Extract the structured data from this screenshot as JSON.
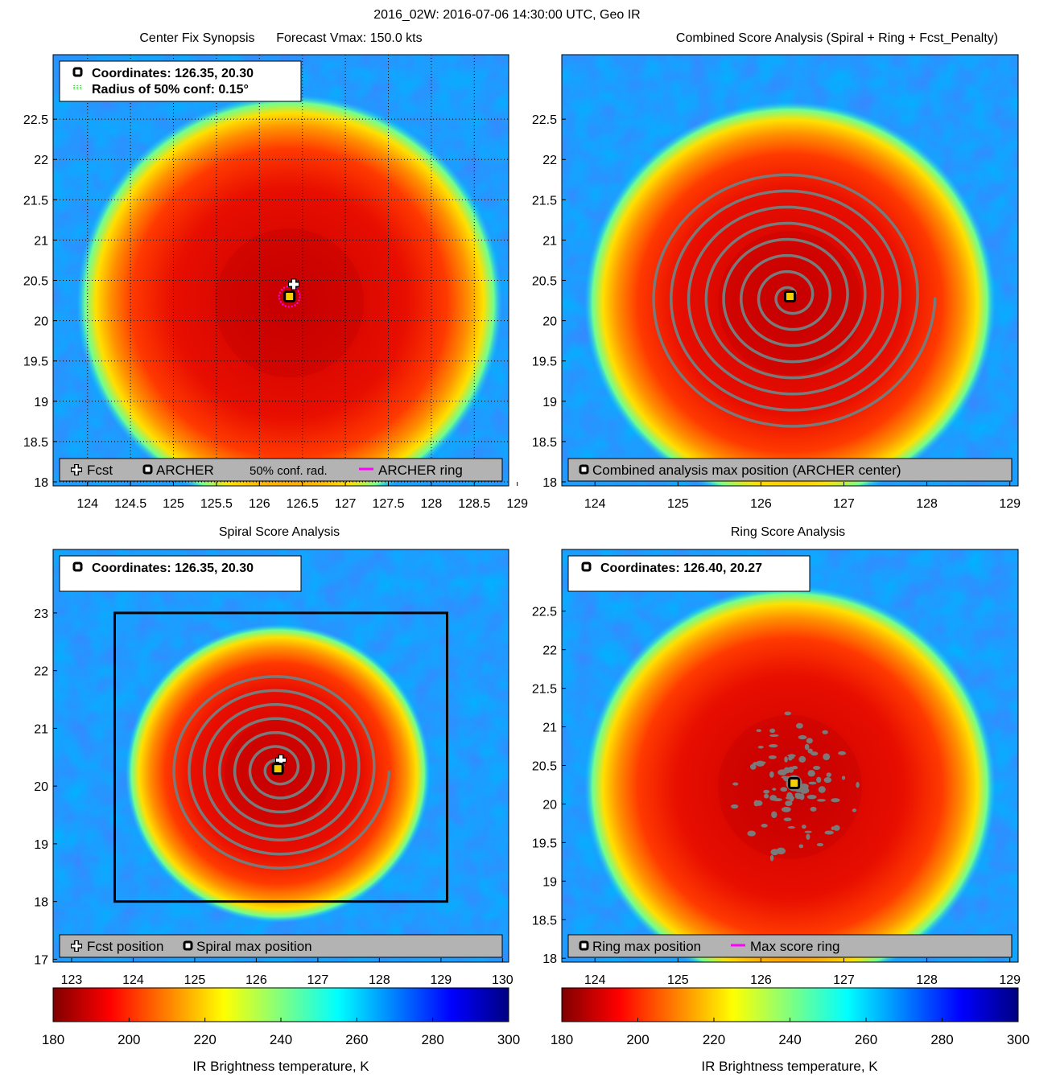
{
  "figure_title": "2016_02W: 2016-07-06 14:30:00 UTC, Geo IR",
  "colors": {
    "contour": "#7a7a7a",
    "ring": "#ff00ff",
    "legend_bg": "#b3b3b3",
    "box": "#000000"
  },
  "chart_data": [
    {
      "id": "center-fix",
      "type": "heatmap",
      "title": "Center Fix Synopsis      Forecast Vmax: 150.0 kts",
      "x_ticks": [
        "124",
        "124.5",
        "125",
        "125.5",
        "126",
        "126.5",
        "127",
        "127.5",
        "128",
        "128.5",
        "129"
      ],
      "x_tick_values": [
        124,
        124.5,
        125,
        125.5,
        126,
        126.5,
        127,
        127.5,
        128,
        128.5,
        129
      ],
      "xlim": [
        123.6,
        128.9
      ],
      "y_ticks": [
        "18",
        "18.5",
        "19",
        "19.5",
        "20",
        "20.5",
        "21",
        "21.5",
        "22",
        "22.5"
      ],
      "y_tick_values": [
        18,
        18.5,
        19,
        19.5,
        20,
        20.5,
        21,
        21.5,
        22,
        22.5
      ],
      "ylim": [
        17.95,
        23.3
      ],
      "grid": true,
      "eye": [
        126.35,
        20.22
      ],
      "core_radius_deg": 2.1,
      "info_lines": [
        "Coordinates: 126.35, 20.30",
        "Radius of 50% conf: 0.15°"
      ],
      "info_icons": [
        "square",
        "dotted"
      ],
      "legend": [
        {
          "icon": "plus",
          "label": "Fcst"
        },
        {
          "icon": "square",
          "label": "ARCHER"
        },
        {
          "icon": "none",
          "label": "50% conf. rad."
        },
        {
          "icon": "magenta-line",
          "label": "ARCHER ring"
        }
      ],
      "archer_center": [
        126.35,
        20.3
      ],
      "fcst_position": [
        126.4,
        20.45
      ],
      "conf_radius_deg": 0.15
    },
    {
      "id": "combined-score",
      "type": "heatmap",
      "title": "Combined Score Analysis (Spiral + Ring + Fcst_Penalty)",
      "x_ticks": [
        "124",
        "125",
        "126",
        "127",
        "128",
        "129"
      ],
      "x_tick_values": [
        124,
        125,
        126,
        127,
        128,
        129
      ],
      "xlim": [
        123.6,
        129.1
      ],
      "y_ticks": [
        "18",
        "18.5",
        "19",
        "19.5",
        "20",
        "20.5",
        "21",
        "21.5",
        "22",
        "22.5"
      ],
      "y_tick_values": [
        18,
        18.5,
        19,
        19.5,
        20,
        20.5,
        21,
        21.5,
        22,
        22.5
      ],
      "ylim": [
        17.95,
        23.3
      ],
      "grid": false,
      "eye": [
        126.35,
        20.22
      ],
      "core_radius_deg": 2.1,
      "info_lines": [],
      "legend": [
        {
          "icon": "square",
          "label": "Combined analysis max position (ARCHER center)"
        }
      ],
      "archer_center": [
        126.35,
        20.3
      ],
      "spiral_turns": 8,
      "spiral_spacing_deg": 0.205
    },
    {
      "id": "spiral-score",
      "type": "heatmap",
      "title": "Spiral Score Analysis",
      "x_ticks": [
        "123",
        "124",
        "125",
        "126",
        "127",
        "128",
        "129",
        "130"
      ],
      "x_tick_values": [
        123,
        124,
        125,
        126,
        127,
        128,
        129,
        130
      ],
      "xlim": [
        122.7,
        130.1
      ],
      "y_ticks": [
        "17",
        "18",
        "19",
        "20",
        "21",
        "22",
        "23"
      ],
      "y_tick_values": [
        17,
        18,
        19,
        20,
        21,
        22,
        23
      ],
      "ylim": [
        16.95,
        24.1
      ],
      "grid": false,
      "eye": [
        126.35,
        20.22
      ],
      "core_radius_deg": 2.1,
      "info_lines": [
        "Coordinates: 126.35, 20.30"
      ],
      "info_icons": [
        "square"
      ],
      "legend": [
        {
          "icon": "plus",
          "label": "Fcst position"
        },
        {
          "icon": "square",
          "label": "Spiral max position"
        }
      ],
      "archer_center": [
        126.35,
        20.3
      ],
      "fcst_position": [
        126.4,
        20.45
      ],
      "search_box": {
        "lon": [
          123.7,
          129.1
        ],
        "lat": [
          18.0,
          23.0
        ]
      },
      "spiral_turns": 7,
      "spiral_spacing_deg": 0.24
    },
    {
      "id": "ring-score",
      "type": "heatmap",
      "title": "Ring Score Analysis",
      "x_ticks": [
        "124",
        "125",
        "126",
        "127",
        "128",
        "129"
      ],
      "x_tick_values": [
        124,
        125,
        126,
        127,
        128,
        129
      ],
      "xlim": [
        123.6,
        129.1
      ],
      "y_ticks": [
        "18",
        "18.5",
        "19",
        "19.5",
        "20",
        "20.5",
        "21",
        "21.5",
        "22",
        "22.5"
      ],
      "y_tick_values": [
        18,
        18.5,
        19,
        19.5,
        20,
        20.5,
        21,
        21.5,
        22,
        22.5
      ],
      "ylim": [
        17.95,
        23.3
      ],
      "grid": false,
      "eye": [
        126.35,
        20.22
      ],
      "core_radius_deg": 2.1,
      "info_lines": [
        "Coordinates: 126.40, 20.27"
      ],
      "info_icons": [
        "square"
      ],
      "legend": [
        {
          "icon": "square",
          "label": "Ring max position"
        },
        {
          "icon": "magenta-line",
          "label": "Max score ring"
        }
      ],
      "archer_center": [
        126.4,
        20.27
      ]
    },
    {
      "id": "colorbar-left",
      "type": "heatmap",
      "colormap": "jet-reversed",
      "range": [
        180,
        300
      ],
      "ticks": [
        "180",
        "200",
        "220",
        "240",
        "260",
        "280",
        "300"
      ],
      "tick_values": [
        180,
        200,
        220,
        240,
        260,
        280,
        300
      ],
      "label": "IR Brightness temperature, K"
    },
    {
      "id": "colorbar-right",
      "type": "heatmap",
      "colormap": "jet-reversed",
      "range": [
        180,
        300
      ],
      "ticks": [
        "180",
        "200",
        "220",
        "240",
        "260",
        "280",
        "300"
      ],
      "tick_values": [
        180,
        200,
        220,
        240,
        260,
        280,
        300
      ],
      "label": "IR Brightness temperature, K"
    }
  ]
}
